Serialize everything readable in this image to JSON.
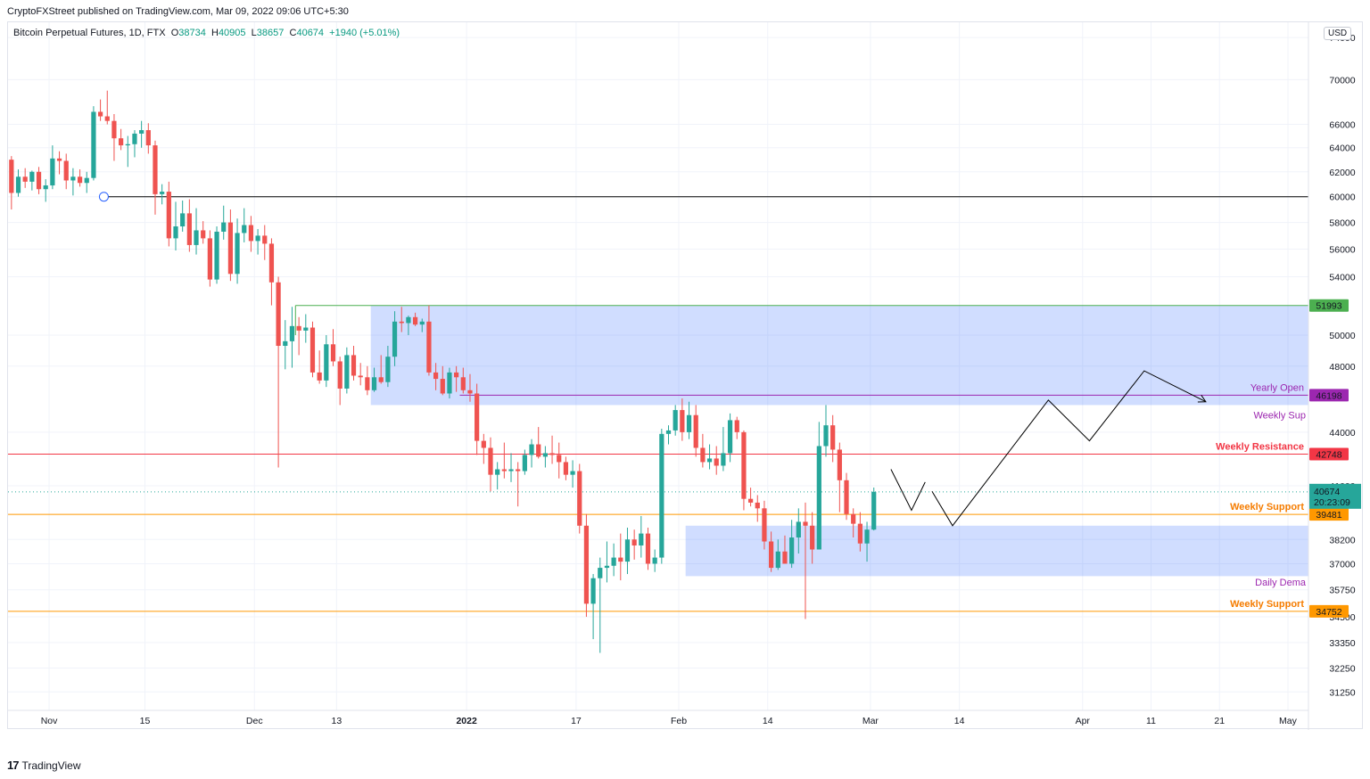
{
  "header": {
    "published_by": "CryptoFXStreet published on TradingView.com, Mar 09, 2022 09:06 UTC+5:30"
  },
  "legend": {
    "symbol": "Bitcoin Perpetual Futures, 1D, FTX",
    "open_label": "O",
    "open": "38734",
    "high_label": "H",
    "high": "40905",
    "low_label": "L",
    "low": "38657",
    "close_label": "C",
    "close": "40674",
    "change": "+1940 (+5.01%)"
  },
  "currency": "USD",
  "footer": {
    "brand": "TradingView",
    "brand_mark": "17"
  },
  "chart_data": {
    "type": "candlestick",
    "y_scale": "log",
    "ylim": [
      30500,
      75500
    ],
    "price_ticks": [
      74000,
      70000,
      66000,
      64000,
      62000,
      60000,
      58000,
      56000,
      54000,
      50000,
      48000,
      44000,
      41000,
      38200,
      37000,
      35750,
      34500,
      33350,
      32250,
      31250
    ],
    "price_tick_labels": [
      "74000",
      "70000",
      "66000",
      "64000",
      "62000",
      "60000",
      "58000",
      "56000",
      "54000",
      "50000",
      "48000",
      "44000",
      "41000",
      "38200",
      "37000",
      "35750",
      "34500",
      "33350",
      "32250",
      "31250"
    ],
    "x_start": "2021-10-26",
    "x_end": "2022-05-04",
    "time_ticks": [
      {
        "date": "2021-11-01",
        "label": "Nov",
        "bold": false
      },
      {
        "date": "2021-11-15",
        "label": "15",
        "bold": false
      },
      {
        "date": "2021-12-01",
        "label": "Dec",
        "bold": false
      },
      {
        "date": "2021-12-13",
        "label": "13",
        "bold": false
      },
      {
        "date": "2022-01-01",
        "label": "2022",
        "bold": true
      },
      {
        "date": "2022-01-17",
        "label": "17",
        "bold": false
      },
      {
        "date": "2022-02-01",
        "label": "Feb",
        "bold": false
      },
      {
        "date": "2022-02-14",
        "label": "14",
        "bold": false
      },
      {
        "date": "2022-03-01",
        "label": "Mar",
        "bold": false
      },
      {
        "date": "2022-03-14",
        "label": "14",
        "bold": false
      },
      {
        "date": "2022-04-01",
        "label": "Apr",
        "bold": false
      },
      {
        "date": "2022-04-11",
        "label": "11",
        "bold": false
      },
      {
        "date": "2022-04-21",
        "label": "21",
        "bold": false
      },
      {
        "date": "2022-05-01",
        "label": "May",
        "bold": false
      }
    ],
    "ohlc_start": "2021-10-26",
    "ohlc": [
      [
        63000,
        63300,
        59000,
        60300
      ],
      [
        60300,
        62200,
        60000,
        61600
      ],
      [
        61600,
        62300,
        60700,
        61200
      ],
      [
        61200,
        62100,
        60500,
        62000
      ],
      [
        62000,
        62400,
        60200,
        60600
      ],
      [
        60600,
        61400,
        59600,
        60900
      ],
      [
        60900,
        64200,
        60600,
        63100
      ],
      [
        63100,
        63700,
        61800,
        62900
      ],
      [
        62900,
        63500,
        60600,
        61300
      ],
      [
        61300,
        62300,
        60100,
        61600
      ],
      [
        61600,
        62200,
        60800,
        61100
      ],
      [
        61100,
        62000,
        60300,
        61500
      ],
      [
        61500,
        67600,
        61300,
        67100
      ],
      [
        67100,
        68200,
        66300,
        66700
      ],
      [
        66700,
        69000,
        66000,
        66300
      ],
      [
        66300,
        66900,
        62900,
        64800
      ],
      [
        64800,
        65600,
        63800,
        64200
      ],
      [
        64200,
        65000,
        62400,
        64300
      ],
      [
        64300,
        65500,
        63200,
        65200
      ],
      [
        65200,
        66300,
        64000,
        65500
      ],
      [
        65500,
        66100,
        63500,
        64200
      ],
      [
        64200,
        64600,
        58600,
        60200
      ],
      [
        60200,
        61000,
        59400,
        60400
      ],
      [
        60400,
        61200,
        56200,
        56800
      ],
      [
        56800,
        59600,
        55900,
        57700
      ],
      [
        57700,
        59700,
        57300,
        58700
      ],
      [
        58700,
        59800,
        55800,
        56300
      ],
      [
        56300,
        59100,
        55600,
        57400
      ],
      [
        57400,
        58100,
        56400,
        56800
      ],
      [
        56800,
        57400,
        53300,
        53800
      ],
      [
        53800,
        57700,
        53500,
        57300
      ],
      [
        57300,
        59300,
        56700,
        58000
      ],
      [
        58000,
        59000,
        53700,
        54200
      ],
      [
        54200,
        58300,
        53500,
        57200
      ],
      [
        57200,
        59100,
        56500,
        57800
      ],
      [
        57800,
        58500,
        55800,
        56600
      ],
      [
        56600,
        57500,
        55600,
        57000
      ],
      [
        57000,
        57800,
        55200,
        56400
      ],
      [
        56400,
        56800,
        52000,
        53600
      ],
      [
        53600,
        54000,
        42000,
        49300
      ],
      [
        49300,
        51000,
        47800,
        49600
      ],
      [
        49600,
        51900,
        47900,
        50600
      ],
      [
        50600,
        51200,
        48700,
        50300
      ],
      [
        50300,
        51400,
        49500,
        50500
      ],
      [
        50500,
        50900,
        47300,
        47600
      ],
      [
        47600,
        49000,
        46900,
        47100
      ],
      [
        47100,
        50000,
        46700,
        49400
      ],
      [
        49400,
        50400,
        48000,
        48300
      ],
      [
        48300,
        48600,
        45600,
        46600
      ],
      [
        46600,
        49200,
        46300,
        48700
      ],
      [
        48700,
        49300,
        47100,
        47400
      ],
      [
        47400,
        48200,
        46800,
        47300
      ],
      [
        47300,
        48000,
        46200,
        46500
      ],
      [
        46500,
        47900,
        46400,
        47300
      ],
      [
        47300,
        48700,
        46900,
        47000
      ],
      [
        47000,
        49300,
        46700,
        48600
      ],
      [
        48600,
        51600,
        48000,
        50900
      ],
      [
        50900,
        51900,
        50200,
        50800
      ],
      [
        50800,
        51300,
        50000,
        51200
      ],
      [
        51200,
        51500,
        50600,
        50700
      ],
      [
        50700,
        51100,
        50200,
        50900
      ],
      [
        50900,
        52000,
        47400,
        47600
      ],
      [
        47600,
        48200,
        46500,
        47200
      ],
      [
        47200,
        48000,
        46200,
        46300
      ],
      [
        46300,
        47900,
        46000,
        47600
      ],
      [
        47600,
        48000,
        46400,
        47300
      ],
      [
        47300,
        47900,
        46300,
        46500
      ],
      [
        46500,
        47500,
        45800,
        46300
      ],
      [
        46300,
        46900,
        42700,
        43500
      ],
      [
        43500,
        43900,
        42200,
        43100
      ],
      [
        43100,
        43700,
        40700,
        41600
      ],
      [
        41600,
        42300,
        40800,
        41900
      ],
      [
        41900,
        43400,
        41400,
        41800
      ],
      [
        41800,
        42800,
        41200,
        41900
      ],
      [
        41900,
        42300,
        39900,
        41800
      ],
      [
        41800,
        43000,
        41600,
        42700
      ],
      [
        42700,
        43600,
        42000,
        43300
      ],
      [
        43300,
        44300,
        42500,
        42600
      ],
      [
        42600,
        43200,
        42000,
        42800
      ],
      [
        42800,
        43800,
        42200,
        42700
      ],
      [
        42700,
        43400,
        41400,
        42300
      ],
      [
        42300,
        42600,
        41300,
        41600
      ],
      [
        41600,
        42400,
        40900,
        41800
      ],
      [
        41800,
        42200,
        38500,
        38900
      ],
      [
        38900,
        39500,
        34500,
        35100
      ],
      [
        35100,
        36500,
        33500,
        36300
      ],
      [
        36300,
        37300,
        32900,
        36800
      ],
      [
        36800,
        38100,
        36100,
        36900
      ],
      [
        36900,
        38000,
        36400,
        37300
      ],
      [
        37300,
        38500,
        36200,
        37100
      ],
      [
        37100,
        38800,
        36500,
        38200
      ],
      [
        38200,
        38700,
        37200,
        37900
      ],
      [
        37900,
        39400,
        37300,
        38500
      ],
      [
        38500,
        38800,
        36700,
        37000
      ],
      [
        37000,
        37700,
        36600,
        37300
      ],
      [
        37300,
        44200,
        37000,
        43900
      ],
      [
        43900,
        44400,
        43300,
        44100
      ],
      [
        44100,
        45600,
        43800,
        45300
      ],
      [
        45300,
        46000,
        43500,
        44000
      ],
      [
        44000,
        45800,
        43600,
        45000
      ],
      [
        45000,
        45600,
        42600,
        43100
      ],
      [
        43100,
        43900,
        42000,
        42300
      ],
      [
        42300,
        43300,
        41900,
        42500
      ],
      [
        42500,
        43200,
        41600,
        42100
      ],
      [
        42100,
        44300,
        41800,
        42800
      ],
      [
        42800,
        45100,
        42300,
        44700
      ],
      [
        44700,
        44900,
        43600,
        44000
      ],
      [
        44000,
        44100,
        39700,
        40300
      ],
      [
        40300,
        40900,
        39900,
        40100
      ],
      [
        40100,
        40500,
        39100,
        39800
      ],
      [
        39800,
        40200,
        37700,
        38100
      ],
      [
        38100,
        38600,
        36600,
        36800
      ],
      [
        36800,
        38200,
        36700,
        37600
      ],
      [
        37600,
        38400,
        37100,
        37000
      ],
      [
        37000,
        39200,
        36800,
        38300
      ],
      [
        38300,
        39800,
        37500,
        39100
      ],
      [
        39100,
        40100,
        34400,
        38900
      ],
      [
        38900,
        39600,
        37000,
        37700
      ],
      [
        37700,
        44600,
        37700,
        43200
      ],
      [
        43200,
        45600,
        42600,
        44400
      ],
      [
        44400,
        45000,
        42300,
        43000
      ],
      [
        43000,
        43400,
        39600,
        41300
      ],
      [
        41300,
        41700,
        39200,
        39500
      ],
      [
        39500,
        39800,
        38300,
        39000
      ],
      [
        39000,
        39600,
        37600,
        38000
      ],
      [
        38000,
        39100,
        37100,
        38700
      ],
      [
        38700,
        40905,
        38657,
        40674
      ]
    ],
    "price_levels": [
      {
        "price": 60000,
        "color": "#000000",
        "width": 1
      },
      {
        "price": 51993,
        "color": "#4caf50",
        "width": 1,
        "badge": "51993"
      },
      {
        "price": 46198,
        "color": "#9c27b0",
        "width": 1,
        "badge": "46198",
        "text": "Yearly Open"
      },
      {
        "price": 42748,
        "color": "#f23645",
        "width": 1,
        "badge": "42748",
        "text": "Weekly Resistance"
      },
      {
        "price": 39481,
        "color": "#ff9800",
        "width": 1,
        "badge": "39481",
        "text": "Weekly Support"
      },
      {
        "price": 34752,
        "color": "#ff9800",
        "width": 1,
        "badge": "34752",
        "text": "Weekly Support"
      }
    ],
    "zones": [
      {
        "from": "2021-12-18",
        "price_top": 51993,
        "price_bottom": 45600,
        "color": "#2962ff",
        "text": "Weekly Sup"
      },
      {
        "from": "2022-02-02",
        "price_top": 38900,
        "price_bottom": 36400,
        "color": "#2962ff",
        "text": "Daily Dema"
      }
    ],
    "current_price": {
      "price": 40674,
      "label": "40674",
      "countdown": "20:23:09",
      "color": "#26a69a"
    },
    "projection_path": [
      {
        "date": "2022-03-10",
        "price": 40700
      },
      {
        "date": "2022-03-13",
        "price": 38900
      },
      {
        "date": "2022-03-27",
        "price": 45900
      },
      {
        "date": "2022-04-02",
        "price": 43500
      },
      {
        "date": "2022-04-10",
        "price": 47700
      },
      {
        "date": "2022-04-19",
        "price": 45800
      }
    ],
    "projection_minor": [
      {
        "date": "2022-03-04",
        "price": 41900
      },
      {
        "date": "2022-03-07",
        "price": 39700
      },
      {
        "date": "2022-03-09",
        "price": 41200
      }
    ],
    "marker": {
      "date": "2021-11-09",
      "price": 60000
    }
  }
}
